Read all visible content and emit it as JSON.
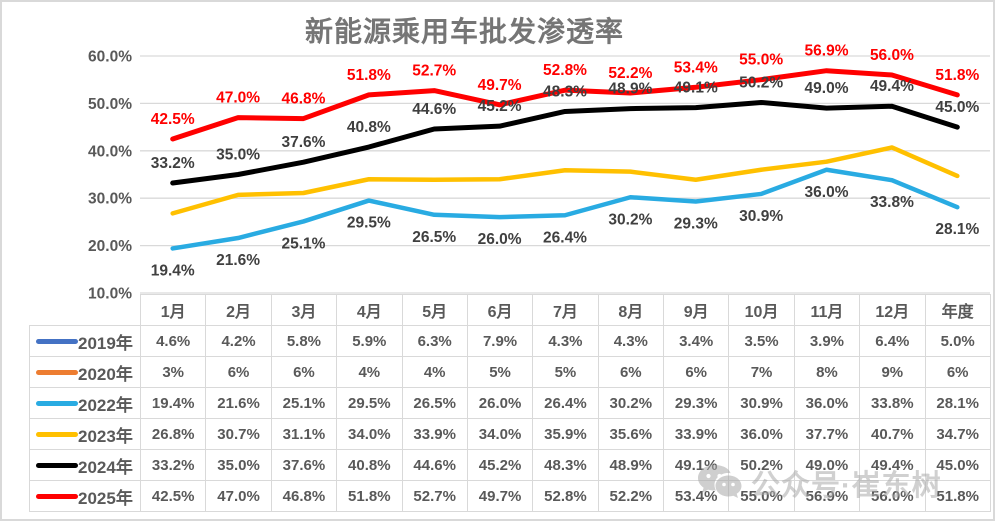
{
  "title": "新能源乘用车批发渗透率",
  "watermark": {
    "icon": "wechat-icon",
    "text": "公众号·崔东树"
  },
  "chart_data": {
    "type": "line",
    "title": "新能源乘用车批发渗透率",
    "categories": [
      "1月",
      "2月",
      "3月",
      "4月",
      "5月",
      "6月",
      "7月",
      "8月",
      "9月",
      "10月",
      "11月",
      "12月",
      "年度"
    ],
    "xlabel": "",
    "ylabel": "",
    "ylim": [
      10,
      60
    ],
    "y_ticks": [
      10,
      20,
      30,
      40,
      50,
      60
    ],
    "y_tick_labels": [
      "10.0%",
      "20.0%",
      "30.0%",
      "40.0%",
      "50.0%",
      "60.0%"
    ],
    "grid": true,
    "gridline_color": "#d9d9d9",
    "legend_position": "table-left-column",
    "series": [
      {
        "name": "2019年",
        "color": "#4472c4",
        "visible_in_plot": false,
        "labels_on_chart": false,
        "values": [
          4.6,
          4.2,
          5.8,
          5.9,
          6.3,
          7.9,
          4.3,
          4.3,
          3.4,
          3.5,
          3.9,
          6.4,
          5.0
        ]
      },
      {
        "name": "2020年",
        "color": "#ed7d31",
        "visible_in_plot": false,
        "labels_on_chart": false,
        "values": [
          3,
          6,
          6,
          4,
          4,
          5,
          5,
          6,
          6,
          7,
          8,
          9,
          6
        ]
      },
      {
        "name": "2022年",
        "color": "#29abe2",
        "visible_in_plot": true,
        "labels_on_chart": true,
        "label_position": "below",
        "label_color": "#404040",
        "stroke_width": 4.5,
        "values": [
          19.4,
          21.6,
          25.1,
          29.5,
          26.5,
          26.0,
          26.4,
          30.2,
          29.3,
          30.9,
          36.0,
          33.8,
          28.1
        ],
        "point_labels": [
          "19.4%",
          "21.6%",
          "25.1%",
          "29.5%",
          "26.5%",
          "26.0%",
          "26.4%",
          "30.2%",
          "29.3%",
          "30.9%",
          "36.0%",
          "33.8%",
          "28.1%"
        ]
      },
      {
        "name": "2023年",
        "color": "#ffc000",
        "visible_in_plot": true,
        "labels_on_chart": false,
        "stroke_width": 4.5,
        "values": [
          26.8,
          30.7,
          31.1,
          34.0,
          33.9,
          34.0,
          35.9,
          35.6,
          33.9,
          36.0,
          37.7,
          40.7,
          34.7
        ]
      },
      {
        "name": "2024年",
        "color": "#000000",
        "visible_in_plot": true,
        "labels_on_chart": true,
        "label_position": "above",
        "label_color": "#3f3f3f",
        "stroke_width": 5,
        "values": [
          33.2,
          35.0,
          37.6,
          40.8,
          44.6,
          45.2,
          48.3,
          48.9,
          49.1,
          50.2,
          49.0,
          49.4,
          45.0
        ],
        "point_labels": [
          "33.2%",
          "35.0%",
          "37.6%",
          "40.8%",
          "44.6%",
          "45.2%",
          "48.3%",
          "48.9%",
          "49.1%",
          "50.2%",
          "49.0%",
          "49.4%",
          "45.0%"
        ]
      },
      {
        "name": "2025年",
        "color": "#ff0000",
        "visible_in_plot": true,
        "labels_on_chart": true,
        "label_position": "above",
        "label_color": "#ff0000",
        "stroke_width": 5,
        "values": [
          42.5,
          47.0,
          46.8,
          51.8,
          52.7,
          49.7,
          52.8,
          52.2,
          53.4,
          55.0,
          56.9,
          56.0,
          51.8
        ],
        "point_labels": [
          "42.5%",
          "47.0%",
          "46.8%",
          "51.8%",
          "52.7%",
          "49.7%",
          "52.8%",
          "52.2%",
          "53.4%",
          "55.0%",
          "56.9%",
          "56.0%",
          "51.8%"
        ]
      }
    ]
  },
  "table": {
    "col_headers": [
      "1月",
      "2月",
      "3月",
      "4月",
      "5月",
      "6月",
      "7月",
      "8月",
      "9月",
      "10月",
      "11月",
      "12月",
      "年度"
    ],
    "rows": [
      {
        "name": "2019年",
        "color": "#4472c4",
        "cells": [
          "4.6%",
          "4.2%",
          "5.8%",
          "5.9%",
          "6.3%",
          "7.9%",
          "4.3%",
          "4.3%",
          "3.4%",
          "3.5%",
          "3.9%",
          "6.4%",
          "5.0%"
        ]
      },
      {
        "name": "2020年",
        "color": "#ed7d31",
        "cells": [
          "3%",
          "6%",
          "6%",
          "4%",
          "4%",
          "5%",
          "5%",
          "6%",
          "6%",
          "7%",
          "8%",
          "9%",
          "6%"
        ]
      },
      {
        "name": "2022年",
        "color": "#29abe2",
        "cells": [
          "19.4%",
          "21.6%",
          "25.1%",
          "29.5%",
          "26.5%",
          "26.0%",
          "26.4%",
          "30.2%",
          "29.3%",
          "30.9%",
          "36.0%",
          "33.8%",
          "28.1%"
        ]
      },
      {
        "name": "2023年",
        "color": "#ffc000",
        "cells": [
          "26.8%",
          "30.7%",
          "31.1%",
          "34.0%",
          "33.9%",
          "34.0%",
          "35.9%",
          "35.6%",
          "33.9%",
          "36.0%",
          "37.7%",
          "40.7%",
          "34.7%"
        ]
      },
      {
        "name": "2024年",
        "color": "#000000",
        "cells": [
          "33.2%",
          "35.0%",
          "37.6%",
          "40.8%",
          "44.6%",
          "45.2%",
          "48.3%",
          "48.9%",
          "49.1%",
          "50.2%",
          "49.0%",
          "49.4%",
          "45.0%"
        ]
      },
      {
        "name": "2025年",
        "color": "#ff0000",
        "cells": [
          "42.5%",
          "47.0%",
          "46.8%",
          "51.8%",
          "52.7%",
          "49.7%",
          "52.8%",
          "52.2%",
          "53.4%",
          "55.0%",
          "56.9%",
          "56.0%",
          "51.8%"
        ]
      }
    ]
  }
}
